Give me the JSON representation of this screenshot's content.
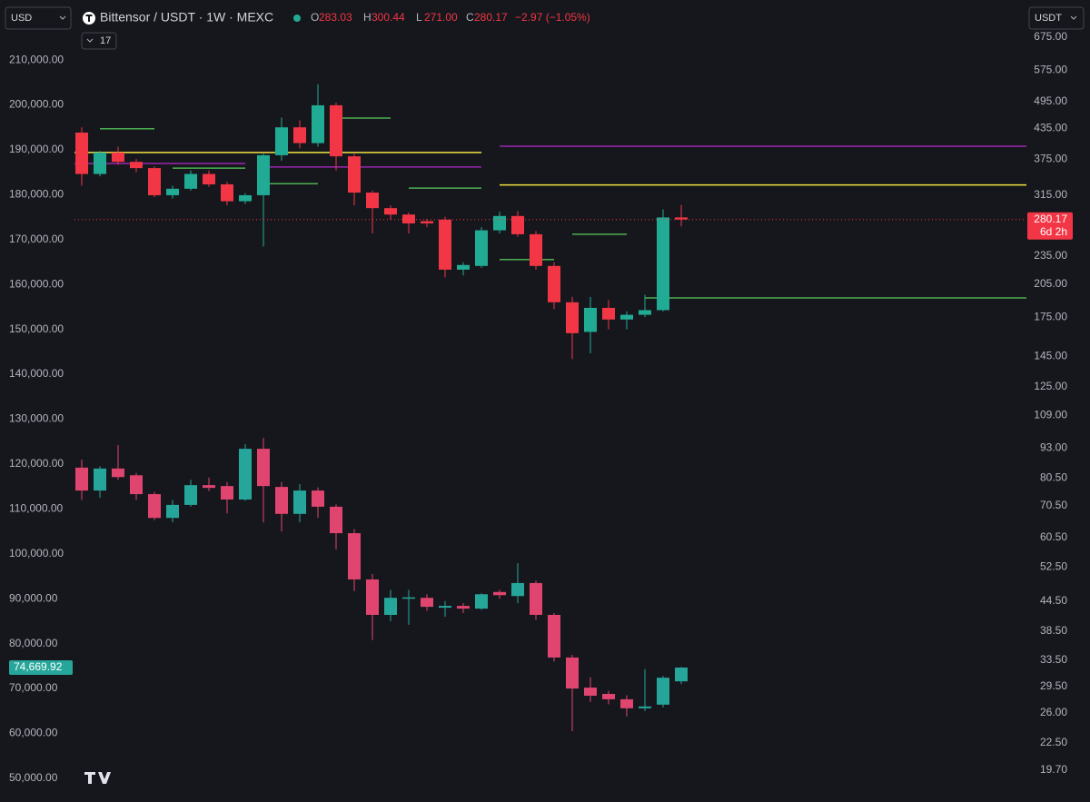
{
  "header": {
    "currency": "USD",
    "symbol": "Bittensor / USDT · 1W · MEXC",
    "ohlc": [
      {
        "key": "O",
        "value": 283.03,
        "label": "283.03"
      },
      {
        "key": "H",
        "value": 300.44,
        "label": "300.44"
      },
      {
        "key": "L",
        "value": 271.0,
        "label": "271.00"
      },
      {
        "key": "C",
        "value": 280.17,
        "label": "280.17"
      }
    ],
    "change": "−2.97 (−1.05%)",
    "indicator_count": "17",
    "quote_currency": "USDT"
  },
  "chart_data": {
    "type": "candlestick",
    "ylim": [
      46340,
      217300
    ],
    "yticks": [
      {
        "value": 210000,
        "label": "210,000.00"
      },
      {
        "value": 200000,
        "label": "200,000.00"
      },
      {
        "value": 190000,
        "label": "190,000.00"
      },
      {
        "value": 180000,
        "label": "180,000.00"
      },
      {
        "value": 170000,
        "label": "170,000.00"
      },
      {
        "value": 160000,
        "label": "160,000.00"
      },
      {
        "value": 150000,
        "label": "150,000.00"
      },
      {
        "value": 140000,
        "label": "140,000.00"
      },
      {
        "value": 130000,
        "label": "130,000.00"
      },
      {
        "value": 120000,
        "label": "120,000.00"
      },
      {
        "value": 110000,
        "label": "110,000.00"
      },
      {
        "value": 100000,
        "label": "100,000.00"
      },
      {
        "value": 90000,
        "label": "90,000.00"
      },
      {
        "value": 80000,
        "label": "80,000.00"
      },
      {
        "value": 70000,
        "label": "70,000.00"
      },
      {
        "value": 60000,
        "label": "60,000.00"
      },
      {
        "value": 50000,
        "label": "50,000.00"
      }
    ],
    "y2lim": [
      17.5,
      708
    ],
    "y2_log": true,
    "y2ticks": [
      {
        "value": 675,
        "label": "675.00"
      },
      {
        "value": 575,
        "label": "575.00"
      },
      {
        "value": 495,
        "label": "495.00"
      },
      {
        "value": 435,
        "label": "435.00"
      },
      {
        "value": 375,
        "label": "375.00"
      },
      {
        "value": 315,
        "label": "315.00"
      },
      {
        "value": 235,
        "label": "235.00"
      },
      {
        "value": 205,
        "label": "205.00"
      },
      {
        "value": 175,
        "label": "175.00"
      },
      {
        "value": 145,
        "label": "145.00"
      },
      {
        "value": 125,
        "label": "125.00"
      },
      {
        "value": 109,
        "label": "109.00"
      },
      {
        "value": 93,
        "label": "93.00"
      },
      {
        "value": 80.5,
        "label": "80.50"
      },
      {
        "value": 70.5,
        "label": "70.50"
      },
      {
        "value": 60.5,
        "label": "60.50"
      },
      {
        "value": 52.5,
        "label": "52.50"
      },
      {
        "value": 44.5,
        "label": "44.50"
      },
      {
        "value": 38.5,
        "label": "38.50"
      },
      {
        "value": 33.5,
        "label": "33.50"
      },
      {
        "value": 29.5,
        "label": "29.50"
      },
      {
        "value": 26,
        "label": "26.00"
      },
      {
        "value": 22.5,
        "label": "22.50"
      },
      {
        "value": 19.7,
        "label": "19.70"
      }
    ],
    "series": [
      {
        "axis": "y2",
        "up_color": "#22ab94",
        "down_color": "#f23645",
        "open": [
          426,
          349,
          387,
          370,
          359,
          315,
          325,
          349,
          332,
          306,
          315,
          382,
          437,
          405,
          486,
          380,
          319,
          296,
          287,
          278,
          280,
          220,
          224,
          266,
          285,
          261,
          224,
          188,
          163,
          183,
          173,
          177,
          181,
          283.03
        ],
        "high": [
          437,
          390,
          398,
          375,
          362,
          330,
          355,
          355,
          336,
          318,
          385,
          458,
          452,
          538,
          492,
          385,
          322,
          300,
          290,
          281,
          284,
          228,
          270,
          291,
          292,
          265,
          228,
          193,
          193,
          190,
          180,
          195,
          294,
          300.44
        ],
        "low": [
          330,
          345,
          365,
          352,
          312,
          310,
          322,
          328,
          300,
          302,
          246,
          372,
          395,
          398,
          355,
          300,
          262,
          280,
          262,
          270,
          212,
          214,
          222,
          262,
          258,
          220,
          182,
          143,
          147,
          165,
          165,
          175,
          180,
          271.0
        ],
        "close": [
          349,
          387,
          370,
          359,
          315,
          325,
          349,
          332,
          306,
          315,
          382,
          437,
          405,
          486,
          380,
          319,
          296,
          287,
          275,
          275,
          220,
          225,
          266,
          285,
          261,
          224,
          188,
          162,
          183,
          173,
          177,
          181,
          283,
          280.17
        ],
        "countdown": "6d 2h"
      },
      {
        "axis": "y",
        "up_color": "#26a69a",
        "down_color": "#e0456f",
        "open": [
          119200,
          114100,
          119000,
          117500,
          113300,
          108000,
          110900,
          115300,
          115100,
          112100,
          123400,
          114900,
          108900,
          114100,
          110500,
          104600,
          94300,
          86400,
          90200,
          90200,
          88000,
          88400,
          87800,
          91500,
          90600,
          93500,
          86400,
          76900,
          70200,
          68800,
          67600,
          65600,
          66400,
          71600
        ],
        "high": [
          121000,
          119500,
          124200,
          118000,
          113800,
          112000,
          116500,
          117000,
          116000,
          124400,
          125800,
          116000,
          115500,
          114800,
          111000,
          105500,
          95500,
          92000,
          92000,
          91000,
          89500,
          89000,
          91200,
          92000,
          97900,
          94000,
          86800,
          77500,
          72500,
          69500,
          68500,
          74300,
          72800,
          74800
        ],
        "low": [
          112000,
          112500,
          116500,
          112000,
          107500,
          107000,
          110500,
          114000,
          109000,
          111800,
          107000,
          105000,
          107000,
          108000,
          101000,
          91700,
          80800,
          85000,
          84200,
          87300,
          86000,
          86800,
          87500,
          90000,
          89000,
          85300,
          76000,
          60500,
          67000,
          66500,
          63800,
          65000,
          65800,
          71000
        ],
        "close": [
          114100,
          119000,
          117100,
          113300,
          108000,
          110900,
          115300,
          114700,
          112100,
          123400,
          115100,
          108900,
          114100,
          110500,
          104600,
          94300,
          86400,
          90200,
          90300,
          88200,
          88400,
          87800,
          91000,
          90800,
          93500,
          86400,
          76900,
          70000,
          68400,
          67600,
          65600,
          66000,
          72400,
          74669.92
        ],
        "last_label": "74,669.92"
      }
    ],
    "levels": [
      {
        "value": 387,
        "color": "#f0e442"
      },
      {
        "value": 331,
        "color": "#f0e442"
      },
      {
        "value": 367,
        "color": "#9c27b0"
      },
      {
        "value": 361,
        "color": "#9c27b0"
      },
      {
        "value": 399,
        "color": "#9c27b0"
      },
      {
        "value": 434,
        "color": "#4caf50"
      },
      {
        "value": 359,
        "color": "#4caf50"
      },
      {
        "value": 333,
        "color": "#4caf50"
      },
      {
        "value": 457,
        "color": "#4caf50"
      },
      {
        "value": 326,
        "color": "#4caf50"
      },
      {
        "value": 261,
        "color": "#4caf50"
      },
      {
        "value": 231,
        "color": "#4caf50"
      },
      {
        "value": 192,
        "color": "#4caf50"
      }
    ]
  }
}
